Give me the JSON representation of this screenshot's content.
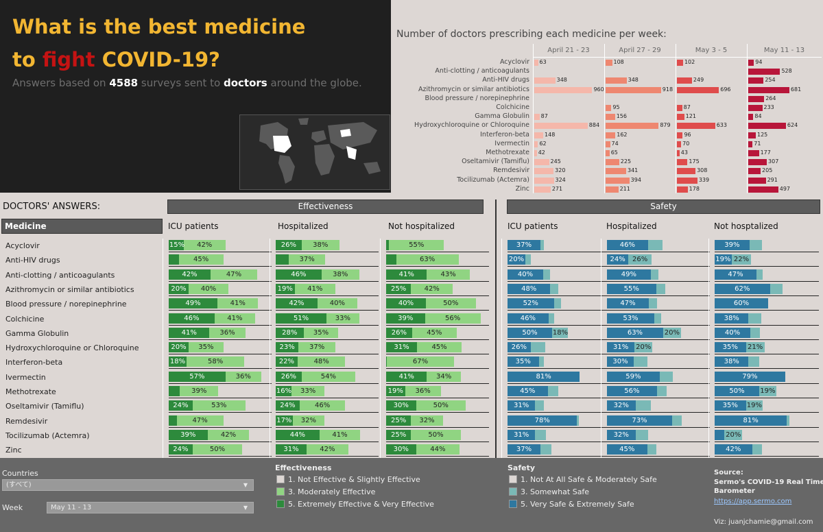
{
  "header": {
    "title_line1": "What is the best medicine",
    "title_to": "to",
    "title_fight": "fight",
    "title_covid": "COVID-19?",
    "subtitle_pre": "Answers based on",
    "subtitle_count": "4588",
    "subtitle_mid": "surveys sent to",
    "subtitle_doctors": "doctors",
    "subtitle_post": "around the globe."
  },
  "weekly": {
    "title": "Number of doctors prescribing each medicine per week:"
  },
  "answers": {
    "title": "DOCTORS' ANSWERS:",
    "medicine_header": "Medicine",
    "effectiveness_label": "Effectiveness",
    "safety_label": "Safety",
    "groups": [
      "ICU patients",
      "Hospitalized",
      "Not hospitalized"
    ],
    "safety_groups": [
      "ICU patients",
      "Hospitalized",
      "Not hosptalized"
    ]
  },
  "footer": {
    "countries_label": "Countries",
    "countries_value": "(すべて)",
    "week_label": "Week",
    "week_value": "May 11 - 13",
    "eff_legend_title": "Effectiveness",
    "eff_legend": [
      "1. Not Effective & Slightly Effective",
      "3. Moderately Effective",
      "5. Extremely Effective & Very Effective"
    ],
    "saf_legend_title": "Safety",
    "saf_legend": [
      "1. Not At All Safe & Moderately Safe",
      "3. Somewhat Safe",
      "5. Very Safe & Extremely Safe"
    ],
    "source_label": "Source:",
    "source_name1": "Sermo's COVID-19 Real Time",
    "source_name2": "Barometer",
    "source_link": "https://app.sermo.com",
    "viz_credit": "Viz: juanjchamie@gmail.com"
  },
  "colors": {
    "eff_dark": "#2d8a3c",
    "eff_light": "#90d482",
    "saf_dark": "#2e78a0",
    "saf_light": "#7ab9b6",
    "week": [
      "#f5b7aa",
      "#ee8770",
      "#df4c4c",
      "#b8163a"
    ]
  },
  "chart_data": [
    {
      "type": "bar",
      "title": "Number of doctors prescribing each medicine per week:",
      "categories": [
        "Acyclovir",
        "Anti-clotting / anticoagulants",
        "Anti-HIV drugs",
        "Azithromycin or similar antibiotics",
        "Blood pressure / norepinephrine",
        "Colchicine",
        "Gamma Globulin",
        "Hydroxychloroquine or Chloroquine",
        "Interferon-beta",
        "Ivermectin",
        "Methotrexate",
        "Oseltamivir (Tamiflu)",
        "Remdesivir",
        "Tocilizumab (Actemra)",
        "Zinc"
      ],
      "series": [
        {
          "name": "April 21 - 23",
          "values": [
            63,
            null,
            348,
            960,
            null,
            null,
            87,
            884,
            148,
            62,
            42,
            245,
            320,
            324,
            271
          ]
        },
        {
          "name": "April 27 - 29",
          "values": [
            108,
            null,
            348,
            918,
            null,
            95,
            156,
            879,
            162,
            74,
            65,
            225,
            341,
            394,
            211
          ]
        },
        {
          "name": "May 3 - 5",
          "values": [
            102,
            null,
            249,
            696,
            null,
            87,
            121,
            633,
            96,
            70,
            43,
            175,
            308,
            339,
            178
          ]
        },
        {
          "name": "May 11 - 13",
          "values": [
            94,
            528,
            254,
            681,
            264,
            233,
            84,
            624,
            125,
            71,
            177,
            307,
            205,
            291,
            497
          ]
        }
      ],
      "xlim": [
        0,
        1000
      ]
    },
    {
      "type": "bar",
      "title": "Effectiveness",
      "stacked": true,
      "medicines": [
        "Acyclovir",
        "Anti-HIV drugs",
        "Anti-clotting / anticoagulants",
        "Azithromycin or similar antibiotics",
        "Blood pressure / norepinephrine",
        "Colchicine",
        "Gamma Globulin",
        "Hydroxychloroquine or Chloroquine",
        "Interferon-beta",
        "Ivermectin",
        "Methotrexate",
        "Oseltamivir (Tamiflu)",
        "Remdesivir",
        "Tocilizumab (Actemra)",
        "Zinc"
      ],
      "groups": {
        "ICU patients": {
          "dark": [
            15,
            10,
            42,
            20,
            49,
            46,
            41,
            20,
            18,
            57,
            11,
            24,
            8,
            39,
            24
          ],
          "light": [
            42,
            45,
            47,
            40,
            41,
            41,
            36,
            35,
            58,
            36,
            39,
            53,
            47,
            42,
            50
          ],
          "dark_labels": [
            "15%",
            "",
            "42%",
            "20%",
            "49%",
            "46%",
            "41%",
            "20%",
            "18%",
            "57%",
            "",
            "24%",
            "",
            "39%",
            "24%"
          ],
          "light_labels": [
            "42%",
            "45%",
            "47%",
            "40%",
            "41%",
            "41%",
            "36%",
            "35%",
            "58%",
            "36%",
            "39%",
            "53%",
            "47%",
            "42%",
            "50%"
          ]
        },
        "Hospitalized": {
          "dark": [
            26,
            13,
            46,
            19,
            42,
            51,
            28,
            23,
            22,
            26,
            16,
            24,
            17,
            44,
            31
          ],
          "light": [
            38,
            37,
            38,
            41,
            40,
            33,
            35,
            37,
            48,
            54,
            33,
            46,
            32,
            41,
            42
          ],
          "dark_labels": [
            "26%",
            "",
            "46%",
            "19%",
            "42%",
            "51%",
            "28%",
            "23%",
            "22%",
            "26%",
            "16%",
            "24%",
            "17%",
            "44%",
            "31%"
          ],
          "light_labels": [
            "38%",
            "37%",
            "38%",
            "41%",
            "40%",
            "33%",
            "35%",
            "37%",
            "48%",
            "54%",
            "33%",
            "46%",
            "32%",
            "41%",
            "42%"
          ]
        },
        "Not hospitalized": {
          "dark": [
            3,
            10,
            41,
            25,
            40,
            39,
            26,
            31,
            1,
            41,
            19,
            30,
            25,
            25,
            30
          ],
          "light": [
            55,
            63,
            43,
            42,
            50,
            56,
            45,
            45,
            67,
            34,
            36,
            50,
            32,
            50,
            44
          ],
          "dark_labels": [
            "",
            "",
            "41%",
            "25%",
            "40%",
            "39%",
            "26%",
            "31%",
            "",
            "41%",
            "19%",
            "30%",
            "25%",
            "25%",
            "30%"
          ],
          "light_labels": [
            "55%",
            "63%",
            "43%",
            "42%",
            "50%",
            "56%",
            "45%",
            "45%",
            "67%",
            "34%",
            "36%",
            "50%",
            "32%",
            "50%",
            "44%"
          ]
        }
      }
    },
    {
      "type": "bar",
      "title": "Safety",
      "stacked": true,
      "medicines": [
        "Acyclovir",
        "Anti-HIV drugs",
        "Anti-clotting / anticoagulants",
        "Azithromycin or similar antibiotics",
        "Blood pressure / norepinephrine",
        "Colchicine",
        "Gamma Globulin",
        "Hydroxychloroquine or Chloroquine",
        "Interferon-beta",
        "Ivermectin",
        "Methotrexate",
        "Oseltamivir (Tamiflu)",
        "Remdesivir",
        "Tocilizumab (Actemra)",
        "Zinc"
      ],
      "groups": {
        "ICU patients": {
          "dark": [
            37,
            20,
            40,
            48,
            52,
            46,
            50,
            26,
            35,
            81,
            45,
            31,
            78,
            31,
            37
          ],
          "light": [
            4,
            6,
            8,
            9,
            8,
            6,
            18,
            16,
            6,
            0,
            12,
            10,
            2,
            12,
            12
          ],
          "dark_labels": [
            "37%",
            "20%",
            "40%",
            "48%",
            "52%",
            "46%",
            "50%",
            "26%",
            "35%",
            "81%",
            "45%",
            "31%",
            "78%",
            "31%",
            "37%"
          ],
          "light_labels": [
            "",
            "",
            "",
            "",
            "",
            "",
            "18%",
            "",
            "",
            "",
            "",
            "",
            "",
            "",
            ""
          ]
        },
        "Hospitalized": {
          "dark": [
            46,
            24,
            49,
            55,
            47,
            53,
            63,
            31,
            30,
            59,
            56,
            32,
            73,
            32,
            45
          ],
          "light": [
            16,
            26,
            9,
            10,
            9,
            8,
            20,
            20,
            15,
            15,
            11,
            17,
            11,
            14,
            10
          ],
          "dark_labels": [
            "46%",
            "24%",
            "49%",
            "55%",
            "47%",
            "53%",
            "63%",
            "31%",
            "30%",
            "59%",
            "56%",
            "32%",
            "73%",
            "32%",
            "45%"
          ],
          "light_labels": [
            "",
            "26%",
            "",
            "",
            "",
            "",
            "20%",
            "20%",
            "",
            "",
            "",
            "",
            "",
            "",
            ""
          ]
        },
        "Not hosptalized": {
          "dark": [
            39,
            19,
            47,
            62,
            60,
            38,
            40,
            35,
            38,
            79,
            50,
            35,
            81,
            11,
            42
          ],
          "light": [
            14,
            22,
            7,
            14,
            0,
            14,
            11,
            21,
            12,
            0,
            19,
            19,
            3,
            20,
            11
          ],
          "dark_labels": [
            "39%",
            "19%",
            "47%",
            "62%",
            "60%",
            "38%",
            "40%",
            "35%",
            "38%",
            "79%",
            "50%",
            "35%",
            "81%",
            "",
            "42%"
          ],
          "light_labels": [
            "",
            "22%",
            "",
            "",
            "",
            "",
            "",
            "21%",
            "",
            "",
            "19%",
            "19%",
            "",
            "20%",
            ""
          ]
        }
      }
    }
  ]
}
